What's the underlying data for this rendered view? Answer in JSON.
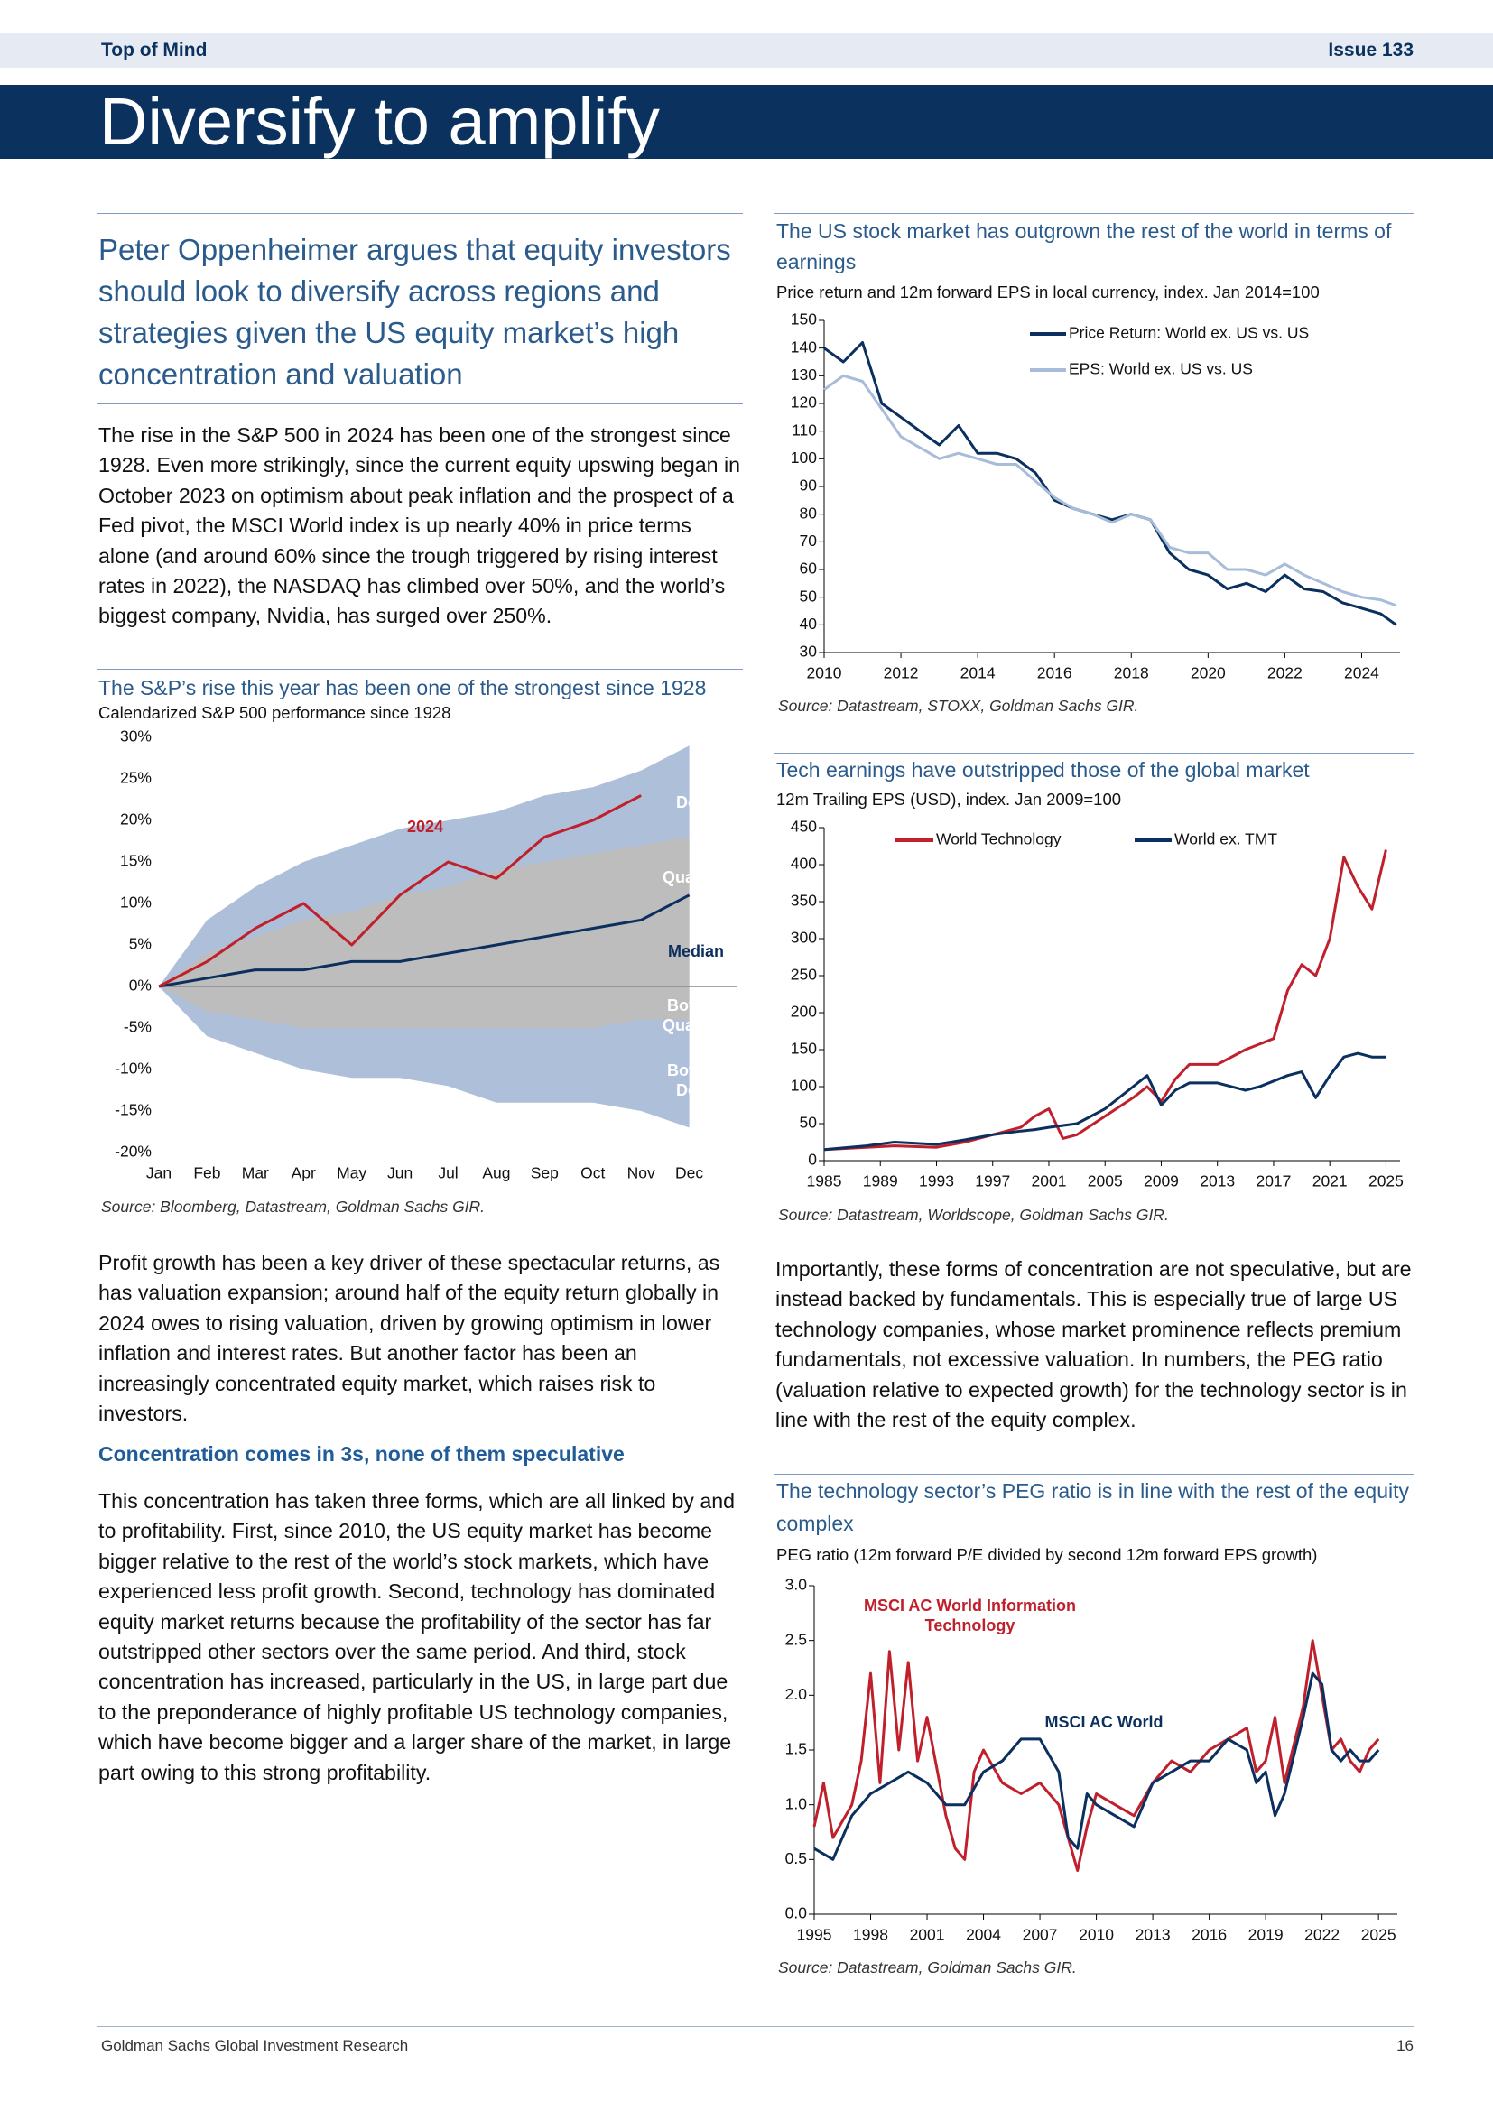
{
  "header": {
    "section": "Top of Mind",
    "issue": "Issue 133",
    "title": "Diversify to amplify"
  },
  "lead": "Peter Oppenheimer argues that equity investors should look to diversify across regions and strategies given the US equity market’s high concentration and valuation",
  "body": {
    "p1": "The rise in the S&P 500 in 2024 has been one of the strongest since 1928. Even more strikingly, since the current equity upswing began in October 2023 on optimism about peak inflation and the prospect of a Fed pivot, the MSCI World index is up nearly 40% in price terms alone (and around 60% since the trough triggered by rising interest rates in 2022), the NASDAQ has climbed over 50%, and the world’s biggest company, Nvidia, has surged over 250%.",
    "p2": "Profit growth has been a key driver of these spectacular returns, as has valuation expansion; around half of the equity return globally in 2024 owes to rising valuation, driven by growing optimism in lower inflation and interest rates. But another factor has been an increasingly concentrated equity market, which raises risk to investors.",
    "heading": "Concentration comes in 3s, none of them speculative",
    "p3": "This concentration has taken three forms, which are all linked by and to profitability. First, since 2010, the US equity market has become bigger relative to the rest of the world’s stock markets, which have experienced less profit growth. Second, technology has dominated equity market returns because the profitability of the sector has far outstripped other sectors over the same period. And third, stock concentration has increased, particularly in the US, in large part due to the preponderance of highly profitable US technology companies, which have become bigger and a larger share of the market, in large part owing to this strong profitability.",
    "p4": "Importantly, these forms of concentration are not speculative, but are instead backed by fundamentals. This is especially true of large US technology companies, whose market prominence reflects premium fundamentals, not excessive valuation. In numbers, the PEG ratio (valuation relative to expected growth) for the technology sector is in line with the rest of the equity complex."
  },
  "footer": {
    "left": "Goldman Sachs Global Investment Research",
    "page": "16"
  },
  "chart_data": [
    {
      "type": "line",
      "title": "The US stock market has outgrown the rest of the world in terms of earnings",
      "subtitle": "Price return and 12m forward EPS in local currency, index. Jan 2014=100",
      "source": "Source: Datastream, STOXX, Goldman Sachs GIR.",
      "legend": "top-right",
      "xlim": [
        2010,
        2025
      ],
      "xticks": [
        2010,
        2012,
        2014,
        2016,
        2018,
        2020,
        2022,
        2024
      ],
      "ylim": [
        30,
        150
      ],
      "yticks": [
        30,
        40,
        50,
        60,
        70,
        80,
        90,
        100,
        110,
        120,
        130,
        140,
        150
      ],
      "series": [
        {
          "name": "Price Return: World ex. US vs. US",
          "color": "#0b2f5e",
          "x": [
            2010,
            2010.5,
            2011,
            2011.5,
            2012,
            2012.5,
            2013,
            2013.5,
            2014,
            2014.5,
            2015,
            2015.5,
            2016,
            2016.5,
            2017,
            2017.5,
            2018,
            2018.5,
            2019,
            2019.5,
            2020,
            2020.5,
            2021,
            2021.5,
            2022,
            2022.5,
            2023,
            2023.5,
            2024,
            2024.5,
            2024.9
          ],
          "values": [
            140,
            135,
            142,
            120,
            115,
            110,
            105,
            112,
            102,
            102,
            100,
            95,
            85,
            82,
            80,
            78,
            80,
            78,
            66,
            60,
            58,
            53,
            55,
            52,
            58,
            53,
            52,
            48,
            46,
            44,
            40
          ]
        },
        {
          "name": "EPS: World ex. US vs. US",
          "color": "#a7bcd9",
          "x": [
            2010,
            2010.5,
            2011,
            2011.5,
            2012,
            2012.5,
            2013,
            2013.5,
            2014,
            2014.5,
            2015,
            2015.5,
            2016,
            2016.5,
            2017,
            2017.5,
            2018,
            2018.5,
            2019,
            2019.5,
            2020,
            2020.5,
            2021,
            2021.5,
            2022,
            2022.5,
            2023,
            2023.5,
            2024,
            2024.5,
            2024.9
          ],
          "values": [
            125,
            130,
            128,
            118,
            108,
            104,
            100,
            102,
            100,
            98,
            98,
            92,
            86,
            82,
            80,
            77,
            80,
            78,
            68,
            66,
            66,
            60,
            60,
            58,
            62,
            58,
            55,
            52,
            50,
            49,
            47
          ]
        }
      ]
    },
    {
      "type": "line",
      "title": "Tech earnings have outstripped those of the global market",
      "subtitle": "12m Trailing EPS (USD), index. Jan 2009=100",
      "source": "Source: Datastream, Worldscope, Goldman Sachs GIR.",
      "legend": "top-left",
      "xlim": [
        1985,
        2026
      ],
      "xticks": [
        1985,
        1989,
        1993,
        1997,
        2001,
        2005,
        2009,
        2013,
        2017,
        2021,
        2025
      ],
      "ylim": [
        0,
        450
      ],
      "yticks": [
        0,
        50,
        100,
        150,
        200,
        250,
        300,
        350,
        400,
        450
      ],
      "series": [
        {
          "name": "World Technology",
          "color": "#c0202b",
          "x": [
            1985,
            1988,
            1990,
            1993,
            1995,
            1997,
            1999,
            2000,
            2001,
            2002,
            2003,
            2005,
            2007,
            2008,
            2009,
            2010,
            2011,
            2013,
            2015,
            2017,
            2018,
            2019,
            2020,
            2021,
            2022,
            2023,
            2024,
            2025
          ],
          "values": [
            15,
            18,
            20,
            18,
            25,
            35,
            45,
            60,
            70,
            30,
            35,
            60,
            85,
            100,
            80,
            110,
            130,
            130,
            150,
            165,
            230,
            265,
            250,
            300,
            410,
            370,
            340,
            420
          ]
        },
        {
          "name": "World ex. TMT",
          "color": "#0b2f5e",
          "x": [
            1985,
            1988,
            1990,
            1993,
            1995,
            1997,
            1999,
            2000,
            2001,
            2003,
            2005,
            2007,
            2008,
            2009,
            2010,
            2011,
            2013,
            2015,
            2016,
            2018,
            2019,
            2020,
            2021,
            2022,
            2023,
            2024,
            2025
          ],
          "values": [
            15,
            20,
            25,
            22,
            28,
            35,
            40,
            42,
            45,
            50,
            70,
            100,
            115,
            75,
            95,
            105,
            105,
            95,
            100,
            115,
            120,
            85,
            115,
            140,
            145,
            140,
            140
          ]
        }
      ]
    },
    {
      "type": "line",
      "title": "The technology sector’s PEG ratio is in line with the rest of the equity complex",
      "subtitle": "PEG ratio (12m forward P/E divided by second 12m forward EPS growth)",
      "source": "Source: Datastream, Goldman Sachs GIR.",
      "xlim": [
        1995,
        2026
      ],
      "xticks": [
        1995,
        1998,
        2001,
        2004,
        2007,
        2010,
        2013,
        2016,
        2019,
        2022,
        2025
      ],
      "ylim": [
        0,
        3
      ],
      "yticks": [
        {
          "value": 0,
          "label": "0.0"
        },
        0.5,
        {
          "value": 1,
          "label": "1.0"
        },
        1.5,
        {
          "value": 2,
          "label": "2.0"
        },
        2.5,
        {
          "value": 3,
          "label": "3.0"
        }
      ],
      "series": [
        {
          "name": "MSCI AC World Information Technology",
          "color": "#c0202b",
          "x": [
            1995,
            1995.5,
            1996,
            1997,
            1997.5,
            1998,
            1998.5,
            1999,
            1999.5,
            2000,
            2000.5,
            2001,
            2002,
            2002.5,
            2003,
            2003.5,
            2004,
            2005,
            2006,
            2007,
            2008,
            2009,
            2009.5,
            2010,
            2011,
            2012,
            2013,
            2014,
            2015,
            2016,
            2017,
            2018,
            2018.5,
            2019,
            2019.5,
            2020,
            2021,
            2021.5,
            2022,
            2022.5,
            2023,
            2023.5,
            2024,
            2024.5,
            2025
          ],
          "values": [
            0.8,
            1.2,
            0.7,
            1.0,
            1.4,
            2.2,
            1.2,
            2.4,
            1.5,
            2.3,
            1.4,
            1.8,
            0.9,
            0.6,
            0.5,
            1.3,
            1.5,
            1.2,
            1.1,
            1.2,
            1.0,
            0.4,
            0.8,
            1.1,
            1.0,
            0.9,
            1.2,
            1.4,
            1.3,
            1.5,
            1.6,
            1.7,
            1.3,
            1.4,
            1.8,
            1.2,
            1.9,
            2.5,
            2.0,
            1.5,
            1.6,
            1.4,
            1.3,
            1.5,
            1.6
          ]
        },
        {
          "name": "MSCI AC World",
          "color": "#0b2f5e",
          "x": [
            1995,
            1996,
            1997,
            1998,
            1999,
            2000,
            2001,
            2002,
            2003,
            2004,
            2005,
            2006,
            2007,
            2008,
            2008.5,
            2009,
            2009.5,
            2010,
            2011,
            2012,
            2013,
            2014,
            2015,
            2016,
            2017,
            2018,
            2018.5,
            2019,
            2019.5,
            2020,
            2021,
            2021.5,
            2022,
            2022.5,
            2023,
            2023.5,
            2024,
            2024.5,
            2025
          ],
          "values": [
            0.6,
            0.5,
            0.9,
            1.1,
            1.2,
            1.3,
            1.2,
            1.0,
            1.0,
            1.3,
            1.4,
            1.6,
            1.6,
            1.3,
            0.7,
            0.6,
            1.1,
            1.0,
            0.9,
            0.8,
            1.2,
            1.3,
            1.4,
            1.4,
            1.6,
            1.5,
            1.2,
            1.3,
            0.9,
            1.1,
            1.8,
            2.2,
            2.1,
            1.5,
            1.4,
            1.5,
            1.4,
            1.4,
            1.5
          ]
        }
      ]
    },
    {
      "type": "area",
      "title": "The S&P’s rise this year has been one of the strongest since 1928",
      "subtitle": "Calendarized S&P 500 performance since 1928",
      "source": "Source: Bloomberg, Datastream, Goldman Sachs GIR.",
      "categories": [
        "Jan",
        "Feb",
        "Mar",
        "Apr",
        "May",
        "Jun",
        "Jul",
        "Aug",
        "Sep",
        "Oct",
        "Nov",
        "Dec"
      ],
      "ylim": [
        -20,
        30
      ],
      "yticks": [
        {
          "value": -20,
          "label": "-20%"
        },
        {
          "value": -15,
          "label": "-15%"
        },
        {
          "value": -10,
          "label": "-10%"
        },
        {
          "value": -5,
          "label": "-5%"
        },
        {
          "value": 0,
          "label": "0%"
        },
        {
          "value": 5,
          "label": "5%"
        },
        {
          "value": 10,
          "label": "10%"
        },
        {
          "value": 15,
          "label": "15%"
        },
        {
          "value": 20,
          "label": "20%"
        },
        {
          "value": 25,
          "label": "25%"
        },
        {
          "value": 30,
          "label": "30%"
        }
      ],
      "series": [
        {
          "name": "Top Decile",
          "style": "band",
          "color": "#aebfda",
          "values": [
            0,
            8,
            12,
            15,
            17,
            19,
            20,
            21,
            23,
            24,
            26,
            29
          ]
        },
        {
          "name": "Top Quartile",
          "style": "band",
          "color": "#bdbdbd",
          "values": [
            0,
            4,
            6,
            8,
            9,
            11,
            12,
            14,
            15,
            16,
            17,
            18
          ]
        },
        {
          "name": "Median",
          "style": "line",
          "color": "#0b2f5e",
          "values": [
            0,
            1,
            2,
            2,
            3,
            3,
            4,
            5,
            6,
            7,
            8,
            11
          ]
        },
        {
          "name": "Bottom Quartile",
          "style": "band",
          "color": "#bdbdbd",
          "values": [
            0,
            -3,
            -4,
            -5,
            -5,
            -5,
            -5,
            -5,
            -5,
            -5,
            -4,
            -4
          ]
        },
        {
          "name": "Bottom Decile",
          "style": "band",
          "color": "#aebfda",
          "values": [
            0,
            -6,
            -8,
            -10,
            -11,
            -11,
            -12,
            -14,
            -14,
            -14,
            -15,
            -17
          ]
        },
        {
          "name": "2024",
          "style": "line",
          "color": "#c0202b",
          "values": [
            0,
            3,
            7,
            10,
            5,
            11,
            15,
            13,
            18,
            20,
            23,
            null
          ]
        }
      ]
    }
  ]
}
